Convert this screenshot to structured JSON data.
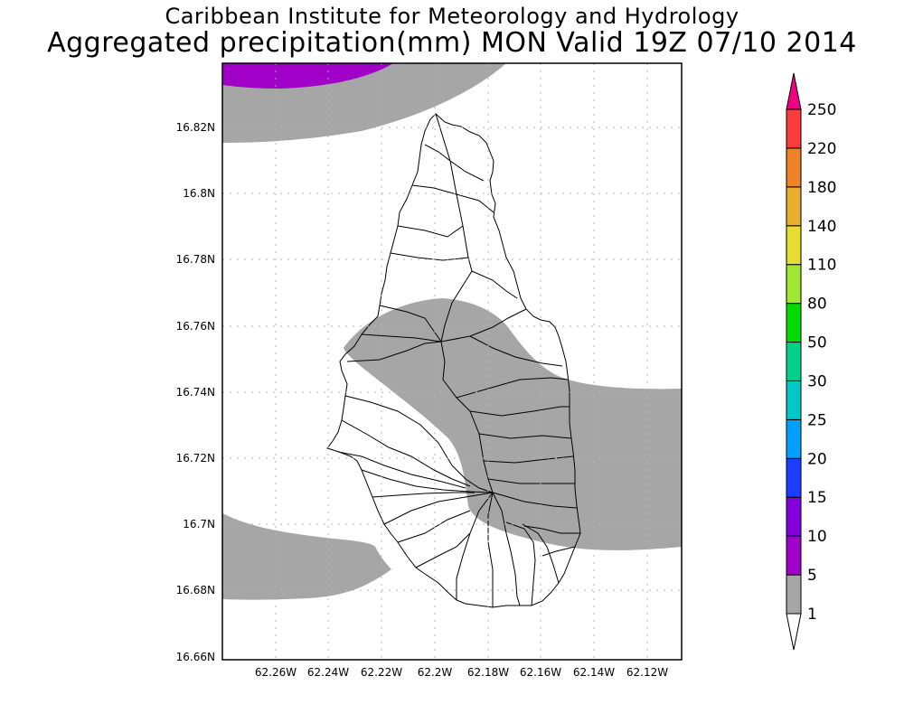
{
  "header": {
    "title": "Caribbean Institute for Meteorology and Hydrology",
    "subtitle": "Aggregated precipitation(mm) MON Valid 19Z 07/10 2014"
  },
  "map": {
    "lat_ticks": [
      "16.82N",
      "16.8N",
      "16.78N",
      "16.76N",
      "16.74N",
      "16.72N",
      "16.7N",
      "16.68N",
      "16.66N"
    ],
    "lon_ticks": [
      "62.26W",
      "62.24W",
      "62.22W",
      "62.2W",
      "62.18W",
      "62.16W",
      "62.14W",
      "62.12W"
    ],
    "grid": true,
    "region": "Montserrat"
  },
  "legend": {
    "levels": [
      {
        "label": "1",
        "color": "#a6a6a6"
      },
      {
        "label": "5",
        "color": "#a000c8"
      },
      {
        "label": "10",
        "color": "#8200dc"
      },
      {
        "label": "15",
        "color": "#1e3cff"
      },
      {
        "label": "20",
        "color": "#00a0ff"
      },
      {
        "label": "25",
        "color": "#00c8c8"
      },
      {
        "label": "30",
        "color": "#00d28c"
      },
      {
        "label": "50",
        "color": "#00dc00"
      },
      {
        "label": "80",
        "color": "#a0e632"
      },
      {
        "label": "110",
        "color": "#e6dc32"
      },
      {
        "label": "140",
        "color": "#e6af2d"
      },
      {
        "label": "180",
        "color": "#f08228"
      },
      {
        "label": "220",
        "color": "#fa3c3c"
      },
      {
        "label": "250",
        "color": "#f00082"
      }
    ]
  }
}
